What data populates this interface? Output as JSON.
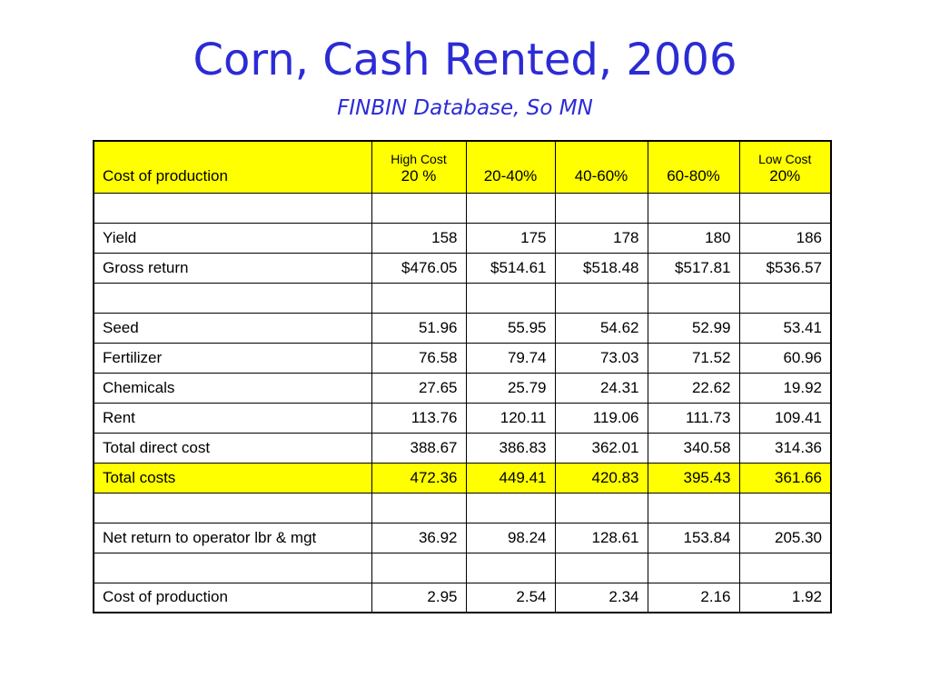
{
  "title": "Corn, Cash Rented, 2006",
  "subtitle": "FINBIN Database, So MN",
  "table": {
    "header": {
      "label": "Cost of production",
      "col1_top": "High Cost",
      "col1_bottom": "20 %",
      "col2": "20-40%",
      "col3": "40-60%",
      "col4": "60-80%",
      "col5_top": "Low Cost",
      "col5_bottom": "20%"
    },
    "rows": [
      {
        "label": "",
        "values": [
          "",
          "",
          "",
          "",
          ""
        ]
      },
      {
        "label": "Yield",
        "values": [
          "158",
          "175",
          "178",
          "180",
          "186"
        ]
      },
      {
        "label": "Gross return",
        "values": [
          "$476.05",
          "$514.61",
          "$518.48",
          "$517.81",
          "$536.57"
        ]
      },
      {
        "label": "",
        "values": [
          "",
          "",
          "",
          "",
          ""
        ]
      },
      {
        "label": "Seed",
        "values": [
          "51.96",
          "55.95",
          "54.62",
          "52.99",
          "53.41"
        ]
      },
      {
        "label": "Fertilizer",
        "values": [
          "76.58",
          "79.74",
          "73.03",
          "71.52",
          "60.96"
        ]
      },
      {
        "label": "Chemicals",
        "values": [
          "27.65",
          "25.79",
          "24.31",
          "22.62",
          "19.92"
        ]
      },
      {
        "label": "Rent",
        "values": [
          "113.76",
          "120.11",
          "119.06",
          "111.73",
          "109.41"
        ]
      },
      {
        "label": "Total direct cost",
        "values": [
          "388.67",
          "386.83",
          "362.01",
          "340.58",
          "314.36"
        ]
      },
      {
        "label": "Total costs",
        "values": [
          "472.36",
          "449.41",
          "420.83",
          "395.43",
          "361.66"
        ]
      },
      {
        "label": "",
        "values": [
          "",
          "",
          "",
          "",
          ""
        ]
      },
      {
        "label": "Net return to operator lbr & mgt",
        "values": [
          "36.92",
          "98.24",
          "128.61",
          "153.84",
          "205.30"
        ]
      },
      {
        "label": "",
        "values": [
          "",
          "",
          "",
          "",
          ""
        ]
      },
      {
        "label": "Cost of production",
        "values": [
          "2.95",
          "2.54",
          "2.34",
          "2.16",
          "1.92"
        ]
      }
    ]
  },
  "colors": {
    "title": "#2b2bd6",
    "highlight": "#ffff00"
  }
}
